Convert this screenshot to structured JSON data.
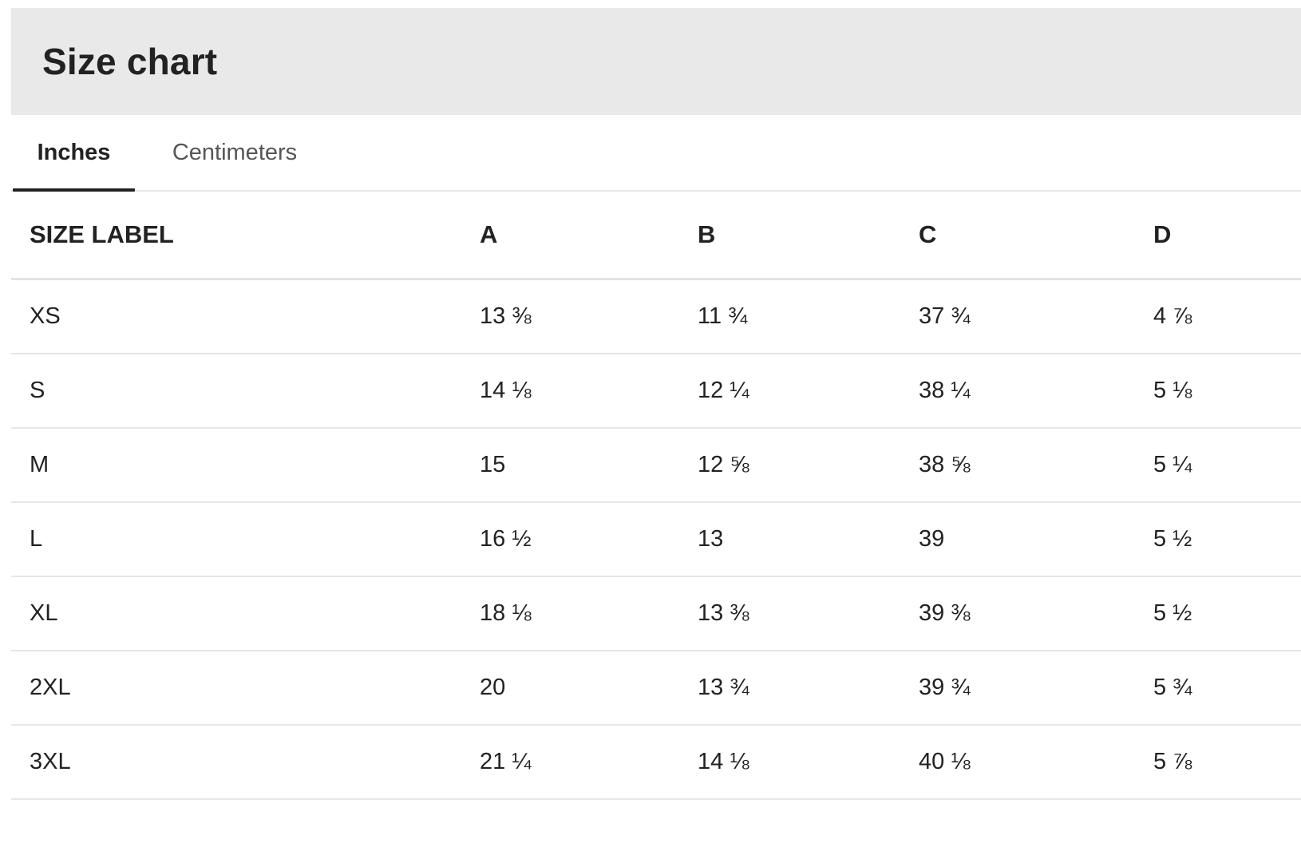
{
  "header": {
    "title": "Size chart"
  },
  "tabs": [
    {
      "label": "Inches",
      "active": true
    },
    {
      "label": "Centimeters",
      "active": false
    }
  ],
  "table": {
    "columns": [
      "SIZE LABEL",
      "A",
      "B",
      "C",
      "D"
    ],
    "rows": [
      [
        "XS",
        "13 ⅜",
        "11 ¾",
        "37 ¾",
        "4 ⅞"
      ],
      [
        "S",
        "14 ⅛",
        "12 ¼",
        "38 ¼",
        "5 ⅛"
      ],
      [
        "M",
        "15",
        "12 ⅝",
        "38 ⅝",
        "5 ¼"
      ],
      [
        "L",
        "16 ½",
        "13",
        "39",
        "5 ½"
      ],
      [
        "XL",
        "18 ⅛",
        "13 ⅜",
        "39 ⅜",
        "5 ½"
      ],
      [
        "2XL",
        "20",
        "13 ¾",
        "39 ¾",
        "5 ¾"
      ],
      [
        "3XL",
        "21 ¼",
        "14 ⅛",
        "40 ⅛",
        "5 ⅞"
      ]
    ]
  },
  "colors": {
    "header_bg": "#e9e9e9",
    "text": "#222222",
    "inactive_tab": "#555555",
    "divider": "#e6e6e6"
  }
}
